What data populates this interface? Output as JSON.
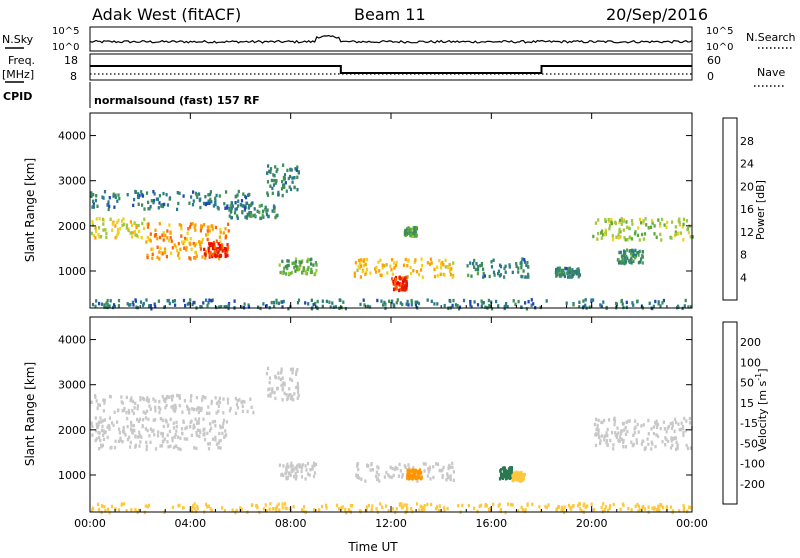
{
  "header": {
    "station": "Adak West (fitACF)",
    "beam": "Beam 11",
    "date": "20/Sep/2016"
  },
  "sky_panel": {
    "left_label": "N.Sky",
    "right_label": "N.Search",
    "left_ticks": [
      "10^5",
      "10^0"
    ],
    "right_ticks": [
      "10^5",
      "10^0"
    ]
  },
  "freq_panel": {
    "left_label_1": "Freq.",
    "left_label_2": "[MHz]",
    "right_label": "Nave",
    "left_ticks": [
      "18",
      "8"
    ],
    "right_ticks": [
      "60",
      "0"
    ]
  },
  "cpid_panel": {
    "label": "CPID",
    "text": "normalsound (fast) 157 RF"
  },
  "chart_data": [
    {
      "type": "heatmap",
      "quantity": "Power",
      "ylabel": "Slant Range [km]",
      "xlabel": "",
      "ylim": [
        180,
        4500
      ],
      "yticks": [
        "1000",
        "2000",
        "3000",
        "4000"
      ],
      "xticks": [
        "00:00",
        "04:00",
        "08:00",
        "12:00",
        "16:00",
        "20:00",
        "00:00"
      ],
      "colorbar_label": "Power [dB]",
      "colorbar_ticks": [
        "4",
        "8",
        "12",
        "16",
        "20",
        "24",
        "28"
      ],
      "colorscale": [
        "#0000ff",
        "#1e46b4",
        "#2a7a8c",
        "#3c8c5a",
        "#5aaa3c",
        "#a0c83c",
        "#f0d21e",
        "#ffa000",
        "#ff6400",
        "#e01e00",
        "#ff0000"
      ],
      "echo_regions": [
        {
          "t": [
            0,
            2.2
          ],
          "r": [
            1750,
            2200
          ],
          "level": 18
        },
        {
          "t": [
            2.2,
            5.5
          ],
          "r": [
            1300,
            2100
          ],
          "level": 22
        },
        {
          "t": [
            4.5,
            5.5
          ],
          "r": [
            1350,
            1650
          ],
          "level": 27
        },
        {
          "t": [
            5.5,
            7.5
          ],
          "r": [
            2200,
            2500
          ],
          "level": 10
        },
        {
          "t": [
            0,
            6.5
          ],
          "r": [
            2400,
            2800
          ],
          "level": 8
        },
        {
          "t": [
            7,
            8.3
          ],
          "r": [
            2700,
            3400
          ],
          "level": 9
        },
        {
          "t": [
            7.5,
            9
          ],
          "r": [
            950,
            1300
          ],
          "level": 13
        },
        {
          "t": [
            10.5,
            14.5
          ],
          "r": [
            900,
            1300
          ],
          "level": 20
        },
        {
          "t": [
            12,
            12.6
          ],
          "r": [
            600,
            900
          ],
          "level": 27
        },
        {
          "t": [
            12.5,
            13
          ],
          "r": [
            1800,
            2000
          ],
          "level": 12
        },
        {
          "t": [
            15,
            17.5
          ],
          "r": [
            900,
            1300
          ],
          "level": 9
        },
        {
          "t": [
            18.5,
            19.5
          ],
          "r": [
            900,
            1100
          ],
          "level": 9
        },
        {
          "t": [
            20,
            24
          ],
          "r": [
            1700,
            2200
          ],
          "level": 16
        },
        {
          "t": [
            21,
            22
          ],
          "r": [
            1200,
            1500
          ],
          "level": 10
        },
        {
          "t": [
            0,
            24
          ],
          "r": [
            200,
            400
          ],
          "level": 8
        }
      ]
    },
    {
      "type": "heatmap",
      "quantity": "Velocity",
      "ylabel": "Slant Range [km]",
      "xlabel": "Time UT",
      "ylim": [
        180,
        4500
      ],
      "yticks": [
        "1000",
        "2000",
        "3000",
        "4000"
      ],
      "xticks": [
        "00:00",
        "04:00",
        "08:00",
        "12:00",
        "16:00",
        "20:00",
        "00:00"
      ],
      "colorbar_label": "Velocity [m s^-1]",
      "colorbar_ticks": [
        "200",
        "100",
        "50",
        "15",
        "-15",
        "-50",
        "-100",
        "-200"
      ],
      "colorscale": [
        "#1e32c8",
        "#2864b4",
        "#287850",
        "#5ab43c",
        "#c8c8c8",
        "#ffc83c",
        "#ff9600",
        "#ff6400",
        "#ff0000"
      ],
      "echo_regions": [
        {
          "t": [
            0,
            5.5
          ],
          "r": [
            1600,
            2300
          ],
          "level": 0
        },
        {
          "t": [
            0,
            6.5
          ],
          "r": [
            2400,
            2800
          ],
          "level": 0
        },
        {
          "t": [
            7,
            8.3
          ],
          "r": [
            2700,
            3400
          ],
          "level": 0
        },
        {
          "t": [
            7.5,
            9
          ],
          "r": [
            950,
            1300
          ],
          "level": 0
        },
        {
          "t": [
            10.5,
            14.5
          ],
          "r": [
            900,
            1300
          ],
          "level": 0
        },
        {
          "t": [
            12.6,
            13.2
          ],
          "r": [
            950,
            1150
          ],
          "level": -60
        },
        {
          "t": [
            16.3,
            16.8
          ],
          "r": [
            950,
            1200
          ],
          "level": 40
        },
        {
          "t": [
            16.8,
            17.3
          ],
          "r": [
            900,
            1100
          ],
          "level": -40
        },
        {
          "t": [
            20,
            24
          ],
          "r": [
            1600,
            2300
          ],
          "level": 0
        },
        {
          "t": [
            0,
            24
          ],
          "r": [
            200,
            400
          ],
          "level": -20
        }
      ]
    }
  ]
}
